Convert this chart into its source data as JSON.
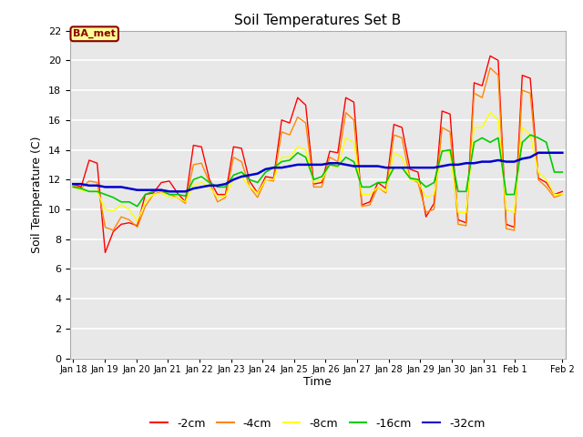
{
  "title": "Soil Temperatures Set B",
  "xlabel": "Time",
  "ylabel": "Soil Temperature (C)",
  "ylim": [
    0,
    22
  ],
  "yticks": [
    0,
    2,
    4,
    6,
    8,
    10,
    12,
    14,
    16,
    18,
    20,
    22
  ],
  "background_color": "#ffffff",
  "plot_bg_color": "#e8e8e8",
  "annotation_text": "BA_met",
  "annotation_bg": "#ffff99",
  "annotation_border": "#8b0000",
  "annotation_text_color": "#8b0000",
  "colors": {
    "-2cm": "#ff0000",
    "-4cm": "#ff8800",
    "-8cm": "#ffff00",
    "-16cm": "#00cc00",
    "-32cm": "#0000cc"
  },
  "series_neg2": [
    11.7,
    11.5,
    13.3,
    13.1,
    7.1,
    8.5,
    9.0,
    9.1,
    8.9,
    11.0,
    11.1,
    11.8,
    11.9,
    11.1,
    10.5,
    14.3,
    14.2,
    12.0,
    11.0,
    11.0,
    14.2,
    14.1,
    11.9,
    11.1,
    12.2,
    12.1,
    16.0,
    15.8,
    17.5,
    17.0,
    11.7,
    11.8,
    13.9,
    13.8,
    17.5,
    17.2,
    10.3,
    10.5,
    11.8,
    11.4,
    15.7,
    15.5,
    12.7,
    12.5,
    9.5,
    10.4,
    16.6,
    16.4,
    9.3,
    9.1,
    18.5,
    18.3,
    20.3,
    20.0,
    9.0,
    8.8,
    19.0,
    18.8,
    12.1,
    11.8,
    11.0,
    11.2
  ],
  "series_neg4": [
    11.6,
    11.4,
    11.9,
    11.8,
    8.8,
    8.6,
    9.5,
    9.3,
    8.8,
    10.2,
    11.0,
    11.2,
    11.0,
    10.8,
    10.4,
    13.0,
    13.1,
    11.8,
    10.5,
    10.8,
    13.5,
    13.2,
    11.5,
    10.8,
    12.0,
    11.9,
    15.2,
    15.0,
    16.2,
    15.8,
    11.5,
    11.5,
    13.5,
    13.2,
    16.5,
    16.0,
    10.2,
    10.3,
    11.5,
    11.1,
    15.0,
    14.8,
    12.1,
    11.8,
    9.8,
    10.0,
    15.5,
    15.2,
    9.0,
    8.9,
    17.8,
    17.5,
    19.5,
    19.0,
    8.7,
    8.6,
    18.0,
    17.8,
    12.0,
    11.5,
    10.8,
    11.0
  ],
  "series_neg8": [
    11.5,
    11.3,
    11.2,
    11.2,
    10.0,
    9.9,
    10.3,
    10.0,
    9.2,
    10.5,
    11.0,
    11.1,
    10.8,
    10.8,
    10.5,
    11.6,
    11.8,
    11.5,
    10.8,
    10.9,
    12.0,
    12.2,
    11.5,
    11.1,
    12.0,
    12.0,
    13.5,
    13.5,
    14.2,
    14.0,
    11.8,
    12.0,
    13.0,
    12.8,
    14.8,
    14.5,
    11.0,
    11.0,
    11.5,
    11.2,
    13.8,
    13.5,
    12.0,
    11.9,
    10.8,
    11.0,
    14.0,
    13.8,
    9.8,
    9.8,
    15.5,
    15.5,
    16.5,
    16.0,
    10.0,
    9.8,
    15.5,
    15.0,
    12.5,
    12.0,
    11.0,
    11.0
  ],
  "series_neg16": [
    11.5,
    11.4,
    11.2,
    11.2,
    11.0,
    10.8,
    10.5,
    10.5,
    10.2,
    11.0,
    11.2,
    11.3,
    11.0,
    11.0,
    10.9,
    12.0,
    12.2,
    11.8,
    11.5,
    11.5,
    12.3,
    12.5,
    12.0,
    11.8,
    12.5,
    12.8,
    13.2,
    13.3,
    13.8,
    13.5,
    12.0,
    12.2,
    13.0,
    12.9,
    13.5,
    13.2,
    11.5,
    11.5,
    11.8,
    11.8,
    12.8,
    12.8,
    12.1,
    12.0,
    11.5,
    11.8,
    13.9,
    14.0,
    11.2,
    11.2,
    14.5,
    14.8,
    14.5,
    14.8,
    11.0,
    11.0,
    14.5,
    15.0,
    14.8,
    14.5,
    12.5,
    12.5
  ],
  "series_neg32": [
    11.7,
    11.7,
    11.6,
    11.6,
    11.5,
    11.5,
    11.5,
    11.4,
    11.3,
    11.3,
    11.3,
    11.3,
    11.2,
    11.2,
    11.2,
    11.4,
    11.5,
    11.6,
    11.6,
    11.7,
    12.0,
    12.2,
    12.3,
    12.4,
    12.7,
    12.8,
    12.8,
    12.9,
    13.0,
    13.0,
    13.0,
    13.0,
    13.1,
    13.1,
    13.0,
    12.9,
    12.9,
    12.9,
    12.9,
    12.8,
    12.8,
    12.8,
    12.8,
    12.8,
    12.8,
    12.8,
    12.9,
    13.0,
    13.0,
    13.1,
    13.1,
    13.2,
    13.2,
    13.3,
    13.2,
    13.2,
    13.4,
    13.5,
    13.8,
    13.8,
    13.8,
    13.8
  ],
  "n_points": 62,
  "x_start_day": 0,
  "x_end_day": 15.5,
  "xtick_pos": [
    0,
    1,
    2,
    3,
    4,
    5,
    6,
    7,
    8,
    9,
    10,
    11,
    12,
    13,
    14,
    15.5
  ],
  "xtick_labels": [
    "Jan 18",
    "Jan 19",
    "Jan 20",
    "Jan 21",
    "Jan 22",
    "Jan 23",
    "Jan 24",
    "Jan 25",
    "Jan 26",
    "Jan 27",
    "Jan 28",
    "Jan 29",
    "Jan 30",
    "Jan 31",
    "Feb 1",
    "Feb 2"
  ]
}
